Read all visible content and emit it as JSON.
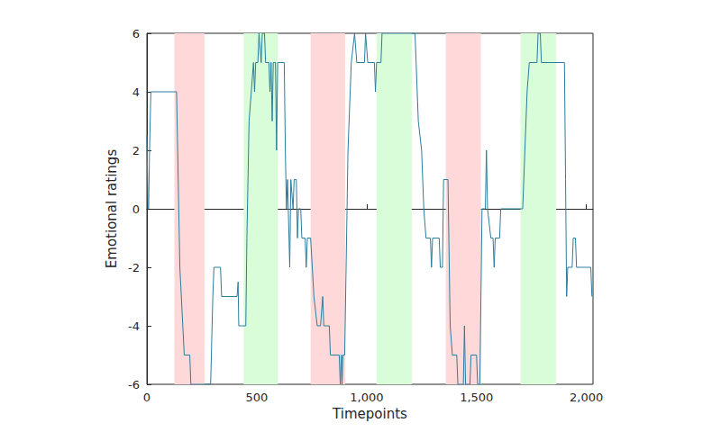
{
  "chart_data": {
    "type": "line",
    "x_label": "Timepoints",
    "y_label": "Emotional ratings",
    "color": "#2b7d9c",
    "xlim": [
      0,
      2030
    ],
    "xticks": [
      0,
      500,
      1000,
      1500,
      2000
    ],
    "ylim": [
      -6,
      6
    ],
    "yticks": [
      -6,
      -4,
      -2,
      0,
      2,
      4,
      6
    ],
    "grid": false,
    "shaded_regions": [
      {
        "start": 125,
        "end": 262,
        "color": "#ffd9d9"
      },
      {
        "start": 440,
        "end": 596,
        "color": "#d9fcd9"
      },
      {
        "start": 745,
        "end": 902,
        "color": "#ffd9d9"
      },
      {
        "start": 1045,
        "end": 1205,
        "color": "#d9fcd9"
      },
      {
        "start": 1360,
        "end": 1520,
        "color": "#ffd9d9"
      },
      {
        "start": 1700,
        "end": 1862,
        "color": "#d9fcd9"
      }
    ],
    "x": [
      0,
      5,
      8,
      12,
      18,
      135,
      150,
      170,
      195,
      200,
      290,
      300,
      305,
      335,
      340,
      410,
      415,
      418,
      450,
      455,
      465,
      475,
      485,
      490,
      495,
      505,
      510,
      520,
      525,
      535,
      540,
      555,
      560,
      565,
      570,
      575,
      585,
      590,
      595,
      625,
      630,
      635,
      640,
      650,
      655,
      665,
      670,
      680,
      685,
      690,
      700,
      705,
      720,
      725,
      730,
      745,
      760,
      775,
      790,
      800,
      805,
      830,
      835,
      875,
      880,
      885,
      888,
      892,
      900,
      915,
      930,
      945,
      955,
      990,
      995,
      1005,
      1035,
      1040,
      1045,
      1065,
      1070,
      1220,
      1225,
      1235,
      1250,
      1260,
      1270,
      1290,
      1295,
      1300,
      1330,
      1335,
      1345,
      1350,
      1370,
      1380,
      1390,
      1410,
      1415,
      1440,
      1445,
      1450,
      1470,
      1475,
      1500,
      1505,
      1515,
      1525,
      1540,
      1545,
      1550,
      1565,
      1575,
      1580,
      1585,
      1605,
      1610,
      1710,
      1720,
      1730,
      1740,
      1775,
      1780,
      1790,
      1795,
      1900,
      1905,
      1910,
      1915,
      1935,
      1940,
      1950,
      1955,
      2020,
      2025
    ],
    "values": [
      2.5,
      0,
      0,
      2,
      4,
      4,
      -2,
      -5,
      -5,
      -6,
      -6,
      -3,
      -2,
      -2,
      -3,
      -3,
      -2.5,
      -4,
      -4,
      -1,
      3,
      4,
      5,
      4,
      5,
      5,
      6,
      5,
      6,
      6,
      5,
      5,
      4,
      5,
      3,
      5,
      5,
      2,
      5,
      5,
      2,
      0,
      1,
      -2,
      1,
      0,
      1,
      1,
      -1,
      0,
      0,
      -1,
      -1,
      -2,
      -1,
      -1,
      -3,
      -4,
      -4,
      -3,
      -4,
      -4,
      -5,
      -5,
      -6,
      -5,
      -6,
      -5,
      -5,
      2,
      5,
      6,
      5,
      5,
      6,
      5,
      5,
      4,
      5,
      5,
      6,
      6,
      5,
      3,
      2,
      0,
      -1,
      -1,
      -2,
      -1,
      -1,
      -2,
      -2,
      1,
      1,
      -4,
      -5,
      -5,
      -6,
      -6,
      -4,
      -6,
      -6,
      -5,
      -5,
      -6,
      -6,
      0,
      0,
      2,
      0,
      -1,
      -1,
      -2,
      -1,
      -1,
      0,
      0,
      2,
      4,
      5,
      5,
      6,
      6,
      5,
      5,
      1,
      -3,
      -2,
      -2,
      -1,
      -1,
      -2,
      -2,
      -3
    ]
  }
}
